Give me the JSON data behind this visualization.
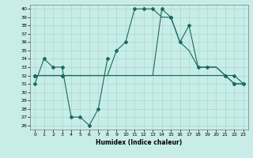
{
  "xlabel": "Humidex (Indice chaleur)",
  "ylabel": "",
  "xlim": [
    -0.5,
    23.5
  ],
  "ylim": [
    25.5,
    40.5
  ],
  "xticks": [
    0,
    1,
    2,
    3,
    4,
    5,
    6,
    7,
    8,
    9,
    10,
    11,
    12,
    13,
    14,
    15,
    16,
    17,
    18,
    19,
    20,
    21,
    22,
    23
  ],
  "yticks": [
    26,
    27,
    28,
    29,
    30,
    31,
    32,
    33,
    34,
    35,
    36,
    37,
    38,
    39,
    40
  ],
  "bg_color": "#c8ede8",
  "grid_color": "#a8d8d0",
  "line_color": "#1a6b5a",
  "series_data": {
    "s1_x": [
      0,
      1,
      2,
      3,
      4,
      5,
      6,
      7,
      8
    ],
    "s1_y": [
      31,
      34,
      33,
      33,
      27,
      27,
      26,
      28,
      34
    ],
    "s2_x": [
      0,
      1,
      2,
      3,
      4,
      5,
      6,
      7,
      8,
      9,
      10,
      11,
      12,
      13,
      14,
      15,
      16,
      17,
      18,
      19,
      20,
      21,
      22,
      23
    ],
    "s2_y": [
      32,
      32,
      32,
      32,
      32,
      32,
      32,
      32,
      32,
      35,
      36,
      40,
      40,
      40,
      39,
      39,
      36,
      35,
      33,
      33,
      33,
      32,
      31,
      31
    ],
    "s3_x": [
      0,
      1,
      2,
      3,
      4,
      5,
      6,
      7,
      8,
      9,
      10,
      11,
      12,
      13,
      14,
      15,
      16,
      17,
      18,
      19,
      20,
      21,
      22,
      23
    ],
    "s3_y": [
      32,
      32,
      32,
      32,
      32,
      32,
      32,
      32,
      32,
      32,
      32,
      32,
      32,
      32,
      40,
      39,
      36,
      38,
      33,
      33,
      33,
      32,
      32,
      31
    ],
    "s4_x": [
      0,
      1,
      2,
      3,
      4,
      5,
      6,
      7,
      8,
      9,
      10,
      11,
      12,
      13,
      14,
      15,
      16,
      17,
      18,
      19,
      20,
      21,
      22,
      23
    ],
    "s4_y": [
      32,
      32,
      32,
      32,
      32,
      32,
      32,
      32,
      32,
      32,
      32,
      32,
      32,
      32,
      32,
      32,
      32,
      32,
      32,
      32,
      32,
      32,
      31,
      31
    ]
  },
  "marker_x": {
    "s1": [
      0,
      1,
      2,
      3,
      4,
      5,
      6,
      7,
      8
    ],
    "s2": [
      0,
      3,
      9,
      10,
      11,
      12,
      13,
      15,
      16,
      18,
      19,
      21,
      22,
      23
    ],
    "s3": [
      0,
      3,
      14,
      15,
      17,
      21,
      22
    ],
    "s4": [
      0,
      3,
      22,
      23
    ]
  },
  "marker_y": {
    "s1": [
      31,
      34,
      33,
      33,
      27,
      27,
      26,
      28,
      34
    ],
    "s2": [
      32,
      32,
      35,
      36,
      40,
      40,
      40,
      39,
      36,
      33,
      33,
      32,
      31,
      31
    ],
    "s3": [
      32,
      32,
      40,
      39,
      38,
      32,
      32
    ],
    "s4": [
      32,
      32,
      31,
      31
    ]
  }
}
